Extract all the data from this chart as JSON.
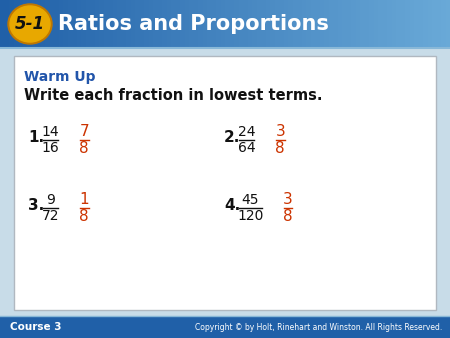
{
  "title_badge": "5-1",
  "title_text": "Ratios and Proportions",
  "header_bg_left": "#2060a8",
  "header_bg_right": "#6aaad8",
  "header_text_color": "#ffffff",
  "badge_bg": "#e8a800",
  "badge_border": "#c07800",
  "badge_text_color": "#1a1a1a",
  "body_bg": "#c8dce8",
  "card_bg": "#ffffff",
  "card_border": "#b0b8c0",
  "warm_up_label": "Warm Up",
  "warm_up_color": "#2255aa",
  "instruction": "Write each fraction in lowest terms.",
  "instruction_color": "#111111",
  "footer_bg": "#2060a8",
  "footer_left": "Course 3",
  "footer_right": "Copyright © by Holt, Rinehart and Winston. All Rights Reserved.",
  "footer_text_color": "#ffffff",
  "problems": [
    {
      "num": "1.",
      "frac_num": "14",
      "frac_den": "16",
      "ans_num": "7",
      "ans_den": "8"
    },
    {
      "num": "2.",
      "frac_num": "24",
      "frac_den": "64",
      "ans_num": "3",
      "ans_den": "8"
    },
    {
      "num": "3.",
      "frac_num": "9",
      "frac_den": "72",
      "ans_num": "1",
      "ans_den": "8"
    },
    {
      "num": "4.",
      "frac_num": "45",
      "frac_den": "120",
      "ans_num": "3",
      "ans_den": "8"
    }
  ],
  "answer_color": "#cc3300",
  "problem_color": "#111111",
  "fig_w": 4.5,
  "fig_h": 3.38,
  "dpi": 100
}
